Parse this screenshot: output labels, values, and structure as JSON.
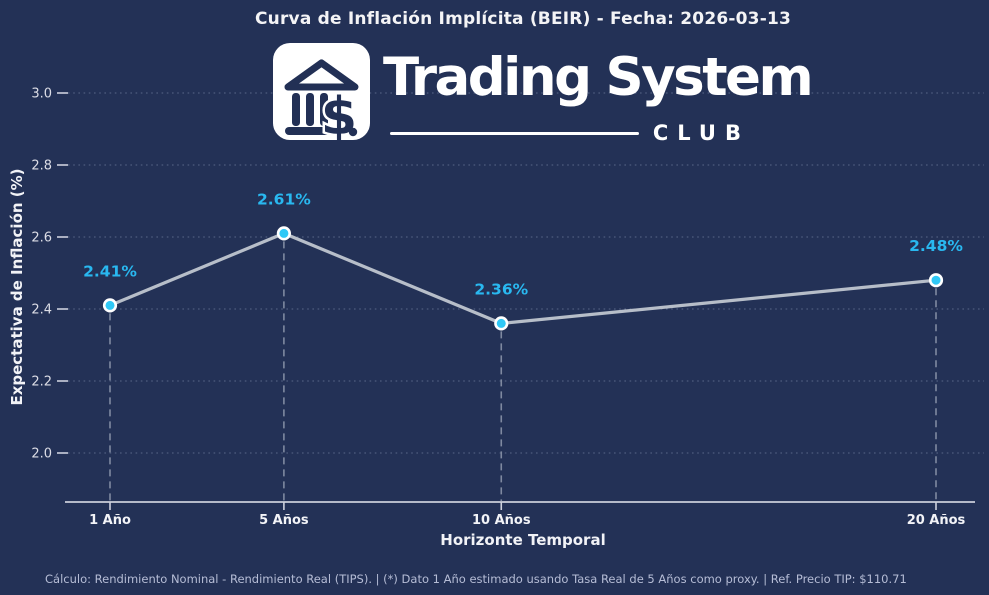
{
  "logo": {
    "brand": "Trading System",
    "club": "CLUB",
    "icon": "bank-dollar-icon"
  },
  "footer": "Cálculo: Rendimiento Nominal - Rendimiento Real (TIPS). | (*) Dato 1 Año estimado usando Tasa Real de 5 Años como proxy. | Ref. Precio TIP: $110.71",
  "colors": {
    "background": "#233156",
    "title_text": "#f4f4f6",
    "tick_text": "#dcdde6",
    "xtick_text": "#f2f3f7",
    "line": "#b7bec9",
    "marker_fill": "#2fc8f6",
    "marker_edge": "#ffffff",
    "point_label": "#29b8f0",
    "grid": "#9aa6c6",
    "dashed_drop_line": "#8a93a9",
    "axis_line": "#e6e8ef",
    "footer_text": "#b6bdd6",
    "logo_badge": "#ffffff"
  },
  "chart_data": {
    "type": "line",
    "title": "Curva de Inflación Implícita (BEIR) - Fecha: 2026-03-13",
    "xlabel": "Horizonte Temporal",
    "ylabel": "Expectativa de Inflación (%)",
    "categories": [
      "1 Año",
      "5 Años",
      "10 Años",
      "20 Años"
    ],
    "x_years": [
      1,
      5,
      10,
      20
    ],
    "values": [
      2.41,
      2.61,
      2.36,
      2.48
    ],
    "point_labels": [
      "2.41%",
      "2.61%",
      "2.36%",
      "2.48%"
    ],
    "yticks": [
      2.0,
      2.2,
      2.4,
      2.6,
      2.8,
      3.0
    ],
    "ylim": [
      1.86,
      3.0
    ],
    "grid": true,
    "legend": false,
    "notes": "single series; dotted horizontal gridlines; dashed vertical drop lines from each point to the x-axis"
  }
}
